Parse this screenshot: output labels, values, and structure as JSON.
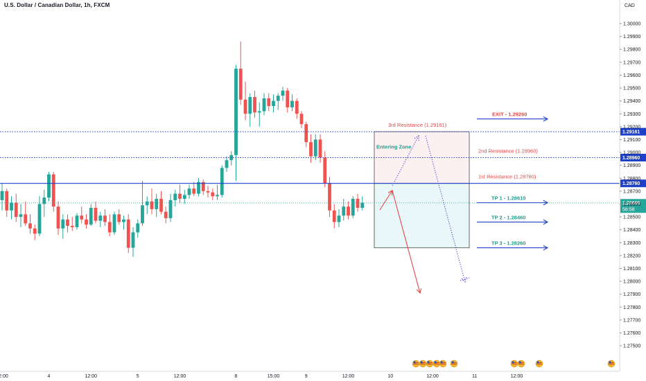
{
  "header": {
    "title": "U.S. Dollar / Canadian Dollar, 1h, FXCM",
    "currency": "CAD"
  },
  "countdown": "56:58",
  "colors": {
    "up": "#26a69a",
    "down": "#ef5350",
    "blue": "#1e40c8",
    "teal_text": "#1e9c8a",
    "red_text": "#e04848",
    "resistance_zone": "#fdf0f0",
    "target_zone": "#e9f7f9",
    "price_label_bg": "#26a69a"
  },
  "chart_data": {
    "type": "candlestick",
    "symbol": "USDCAD",
    "timeframe": "1h",
    "source": "FXCM",
    "ylim": [
      1.2735,
      1.3014
    ],
    "y_ticks": [
      "1.30000",
      "1.29900",
      "1.29800",
      "1.29700",
      "1.29600",
      "1.29500",
      "1.29400",
      "1.29300",
      "1.29200",
      "1.29100",
      "1.29000",
      "1.28900",
      "1.28800",
      "1.28700",
      "1.28600",
      "1.28500",
      "1.28400",
      "1.28300",
      "1.28200",
      "1.28100",
      "1.28000",
      "1.27900",
      "1.27800",
      "1.27700",
      "1.27600",
      "1.27500"
    ],
    "x_ticks": [
      {
        "label": "12:00",
        "i": 0
      },
      {
        "label": "4",
        "i": 10
      },
      {
        "label": "12:00",
        "i": 19
      },
      {
        "label": "5",
        "i": 29
      },
      {
        "label": "12:00",
        "i": 38
      },
      {
        "label": "8",
        "i": 50
      },
      {
        "label": "15:00",
        "i": 58
      },
      {
        "label": "9",
        "i": 65
      },
      {
        "label": "12:00",
        "i": 74
      },
      {
        "label": "10",
        "i": 83
      },
      {
        "label": "12:00",
        "i": 92
      },
      {
        "label": "11",
        "i": 101
      },
      {
        "label": "12:00",
        "i": 110
      }
    ],
    "candles": [
      [
        1.2863,
        1.2876,
        1.2855,
        1.287
      ],
      [
        1.287,
        1.2872,
        1.285,
        1.2855
      ],
      [
        1.2855,
        1.2866,
        1.2848,
        1.2861
      ],
      [
        1.2861,
        1.2868,
        1.2846,
        1.285
      ],
      [
        1.285,
        1.286,
        1.2842,
        1.2852
      ],
      [
        1.2852,
        1.2862,
        1.2843,
        1.2845
      ],
      [
        1.2845,
        1.2852,
        1.2837,
        1.2841
      ],
      [
        1.2841,
        1.2844,
        1.2832,
        1.2837
      ],
      [
        1.2837,
        1.2866,
        1.2835,
        1.286
      ],
      [
        1.286,
        1.2871,
        1.285,
        1.2865
      ],
      [
        1.2865,
        1.2885,
        1.2862,
        1.2883
      ],
      [
        1.2883,
        1.2885,
        1.2854,
        1.2858
      ],
      [
        1.2858,
        1.2862,
        1.2836,
        1.2841
      ],
      [
        1.2841,
        1.2852,
        1.2833,
        1.2848
      ],
      [
        1.2848,
        1.2852,
        1.2838,
        1.2843
      ],
      [
        1.2843,
        1.285,
        1.2839,
        1.2842
      ],
      [
        1.2842,
        1.2853,
        1.284,
        1.2851
      ],
      [
        1.2851,
        1.2858,
        1.2845,
        1.2848
      ],
      [
        1.2848,
        1.2852,
        1.2841,
        1.2844
      ],
      [
        1.2844,
        1.286,
        1.2843,
        1.2857
      ],
      [
        1.2857,
        1.2862,
        1.2845,
        1.2847
      ],
      [
        1.2847,
        1.2854,
        1.2842,
        1.2851
      ],
      [
        1.2851,
        1.2856,
        1.2843,
        1.2846
      ],
      [
        1.2846,
        1.2852,
        1.2835,
        1.2838
      ],
      [
        1.2838,
        1.2854,
        1.2836,
        1.2852
      ],
      [
        1.2852,
        1.2856,
        1.2844,
        1.2846
      ],
      [
        1.2846,
        1.2851,
        1.284,
        1.2848
      ],
      [
        1.2848,
        1.2852,
        1.2822,
        1.2826
      ],
      [
        1.2826,
        1.2842,
        1.2819,
        1.2838
      ],
      [
        1.2838,
        1.2848,
        1.2834,
        1.2845
      ],
      [
        1.2845,
        1.2878,
        1.2843,
        1.2859
      ],
      [
        1.2859,
        1.2866,
        1.2852,
        1.2862
      ],
      [
        1.2862,
        1.2872,
        1.2852,
        1.2856
      ],
      [
        1.2856,
        1.2868,
        1.285,
        1.2864
      ],
      [
        1.2864,
        1.287,
        1.2852,
        1.2854
      ],
      [
        1.2854,
        1.2858,
        1.2845,
        1.2849
      ],
      [
        1.2849,
        1.2868,
        1.2846,
        1.2863
      ],
      [
        1.2863,
        1.2871,
        1.2858,
        1.2868
      ],
      [
        1.2868,
        1.2875,
        1.2861,
        1.2864
      ],
      [
        1.2864,
        1.2871,
        1.286,
        1.2867
      ],
      [
        1.2867,
        1.2875,
        1.2864,
        1.2872
      ],
      [
        1.2872,
        1.2877,
        1.2866,
        1.2868
      ],
      [
        1.2868,
        1.288,
        1.2866,
        1.2877
      ],
      [
        1.2877,
        1.2879,
        1.2867,
        1.287
      ],
      [
        1.287,
        1.2874,
        1.2865,
        1.2869
      ],
      [
        1.2869,
        1.2872,
        1.2863,
        1.2866
      ],
      [
        1.2866,
        1.2875,
        1.2863,
        1.2867
      ],
      [
        1.2867,
        1.289,
        1.2865,
        1.2888
      ],
      [
        1.2888,
        1.2897,
        1.2885,
        1.2894
      ],
      [
        1.2894,
        1.2901,
        1.289,
        1.2898
      ],
      [
        1.2898,
        1.2968,
        1.2878,
        1.2965
      ],
      [
        1.2965,
        1.2986,
        1.2937,
        1.2941
      ],
      [
        1.2941,
        1.2955,
        1.2925,
        1.293
      ],
      [
        1.293,
        1.2946,
        1.292,
        1.2943
      ],
      [
        1.2943,
        1.2948,
        1.2927,
        1.2931
      ],
      [
        1.2931,
        1.2939,
        1.292,
        1.2932
      ],
      [
        1.2932,
        1.2946,
        1.2929,
        1.2942
      ],
      [
        1.2942,
        1.2946,
        1.2932,
        1.2936
      ],
      [
        1.2936,
        1.2945,
        1.2931,
        1.294
      ],
      [
        1.294,
        1.2946,
        1.2933,
        1.2944
      ],
      [
        1.2944,
        1.2951,
        1.294,
        1.2948
      ],
      [
        1.2948,
        1.295,
        1.2931,
        1.2935
      ],
      [
        1.2935,
        1.2945,
        1.2932,
        1.294
      ],
      [
        1.294,
        1.2942,
        1.2926,
        1.293
      ],
      [
        1.293,
        1.2932,
        1.2919,
        1.2922
      ],
      [
        1.2922,
        1.2924,
        1.2904,
        1.2908
      ],
      [
        1.2908,
        1.2914,
        1.2892,
        1.2897
      ],
      [
        1.2897,
        1.2914,
        1.2894,
        1.291
      ],
      [
        1.291,
        1.2914,
        1.2892,
        1.2896
      ],
      [
        1.2896,
        1.2901,
        1.2873,
        1.2876
      ],
      [
        1.2876,
        1.2881,
        1.285,
        1.2855
      ],
      [
        1.2855,
        1.286,
        1.2841,
        1.2846
      ],
      [
        1.2846,
        1.2856,
        1.2842,
        1.2851
      ],
      [
        1.2851,
        1.2864,
        1.2847,
        1.2858
      ],
      [
        1.2858,
        1.2862,
        1.2848,
        1.2851
      ],
      [
        1.2851,
        1.2866,
        1.2849,
        1.2864
      ],
      [
        1.2864,
        1.2868,
        1.2854,
        1.2857
      ],
      [
        1.2857,
        1.2866,
        1.2855,
        1.2861
      ]
    ],
    "price_lines": [
      {
        "label": "1.29161",
        "value": 1.29161,
        "style": "dotted"
      },
      {
        "label": "1.28960",
        "value": 1.2896,
        "style": "dotted"
      },
      {
        "label": "1.28760",
        "value": 1.2876,
        "style": "solid"
      }
    ],
    "current_price": {
      "label": "1.28609",
      "value": 1.28609
    },
    "annotations": {
      "resistance": [
        {
          "text": "3rd Resistance (1.29161)",
          "value": 1.29161
        },
        {
          "text": "2nd Resistance (1.28960)",
          "value": 1.2896
        },
        {
          "text": "1st Resistance (1.28760)",
          "value": 1.2876
        }
      ],
      "exit": {
        "text": "EXIT - 1.29260",
        "value": 1.2926
      },
      "targets": [
        {
          "text": "TP 1 - 1.28610",
          "value": 1.2861
        },
        {
          "text": "TP 2 - 1.28460",
          "value": 1.2846
        },
        {
          "text": "TP 3 - 1.28260",
          "value": 1.2826
        }
      ],
      "entering_zone": "Entering Zone",
      "zone_top": 1.29161,
      "zone_mid": 1.2876,
      "zone_bottom": 1.2826
    }
  }
}
